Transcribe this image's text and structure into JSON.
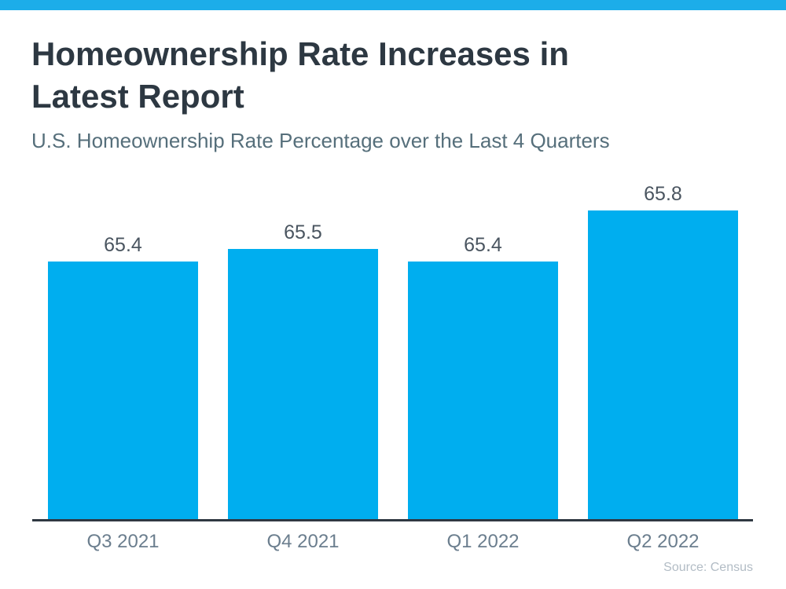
{
  "header": {
    "title": "Homeownership Rate Increases in Latest Report",
    "subtitle": "U.S. Homeownership Rate Percentage over the Last 4 Quarters"
  },
  "chart_data": {
    "type": "bar",
    "title": "Homeownership Rate Increases in Latest Report",
    "subtitle": "U.S. Homeownership Rate Percentage over the Last 4 Quarters",
    "categories": [
      "Q3 2021",
      "Q4 2021",
      "Q1 2022",
      "Q2 2022"
    ],
    "values": [
      65.4,
      65.5,
      65.4,
      65.8
    ],
    "xlabel": "",
    "ylabel": "",
    "ylim": [
      63.38,
      66.18
    ],
    "grid": false,
    "legend": false,
    "value_labels_shown": true,
    "axis_shown": "x-only"
  },
  "footer": {
    "source": "Source: Census"
  },
  "colors": {
    "accent_strip": "#1cade9",
    "bar_fill": "#00aeef",
    "title_text": "#2d3842",
    "subtitle_text": "#566f7b",
    "value_label_text": "#4a5560",
    "tick_label_text": "#6b7e8e",
    "axis_line": "#2f3842",
    "source_text": "#b2bcc5"
  }
}
